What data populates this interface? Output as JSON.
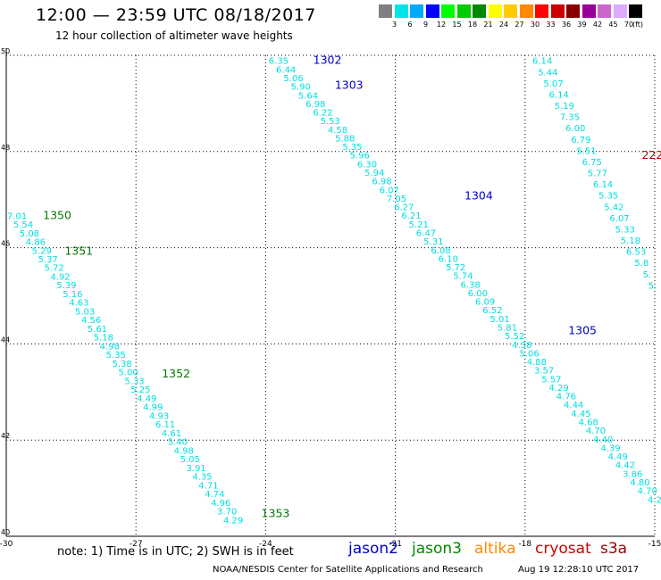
{
  "header": {
    "title": "12:00 — 23:59 UTC 08/18/2017",
    "subtitle": "12 hour collection of altimeter wave heights"
  },
  "colorbar": {
    "colors": [
      "#808080",
      "#00e5e5",
      "#00aaff",
      "#0000ff",
      "#00ff00",
      "#00cc00",
      "#008800",
      "#ffff00",
      "#ffcc00",
      "#ff8800",
      "#ff0000",
      "#cc0000",
      "#880000",
      "#990099",
      "#cc66cc",
      "#ddaaff",
      "#000000"
    ],
    "labels": [
      "3",
      "6",
      "9",
      "12",
      "15",
      "18",
      "21",
      "24",
      "27",
      "30",
      "33",
      "36",
      "39",
      "42",
      "45",
      "70"
    ],
    "unit": "(ft)"
  },
  "map": {
    "x_ticks": [
      "-30",
      "-27",
      "-24",
      "-21",
      "-18",
      "-15"
    ],
    "y_ticks": [
      "50",
      "48",
      "46",
      "44",
      "42",
      "40"
    ],
    "grid": true
  },
  "tracks": [
    {
      "id": "jason3-track-1350-1353",
      "color": "#00dede",
      "start": [
        -29.75,
        46.6
      ],
      "end": [
        -24.75,
        40.27
      ],
      "values": [
        "7.01",
        "5.54",
        "5.08",
        "4.86",
        "5.29",
        "5.37",
        "5.72",
        "4.92",
        "5.39",
        "5.16",
        "4.63",
        "5.03",
        "4.56",
        "5.61",
        "5.18",
        "4.98",
        "5.35",
        "5.38",
        "5.00",
        "5.33",
        "5.25",
        "4.49",
        "4.99",
        "4.93",
        "6.11",
        "4.61",
        "5.40",
        "4.98",
        "5.05",
        "3.91",
        "4.35",
        "4.71",
        "4.74",
        "4.96",
        "3.70",
        "4.29"
      ]
    },
    {
      "id": "jason2-track-1302-1305",
      "color": "#00dede",
      "start": [
        -23.7,
        49.82
      ],
      "end": [
        -15.0,
        40.7
      ],
      "values": [
        "6.35",
        "6.44",
        "5.06",
        "5.90",
        "5.64",
        "6.98",
        "6.22",
        "5.53",
        "4.58",
        "5.88",
        "5.35",
        "5.96",
        "6.30",
        "5.94",
        "6.98",
        "6.07",
        "7.05",
        "6.27",
        "6.21",
        "5.21",
        "6.47",
        "5.31",
        "6.08",
        "6.10",
        "5.72",
        "5.74",
        "6.38",
        "6.00",
        "6.09",
        "6.52",
        "5.01",
        "5.81",
        "5.52",
        "4.38",
        "5.06",
        "4.88",
        "3.57",
        "5.57",
        "4.29",
        "4.76",
        "4.44",
        "4.45",
        "4.68",
        "4.70",
        "4.40",
        "4.39",
        "4.49",
        "4.42",
        "3.86",
        "4.80",
        "4.70",
        "4.2"
      ]
    },
    {
      "id": "track-right-edge",
      "color": "#00dede",
      "start": [
        -17.6,
        49.82
      ],
      "end": [
        -15.05,
        45.15
      ],
      "values": [
        "6.14",
        "5.44",
        "5.07",
        "6.14",
        "5.19",
        "7.35",
        "6.00",
        "6.79",
        "5.51",
        "6.75",
        "5.77",
        "6.14",
        "5.35",
        "5.42",
        "6.07",
        "5.33",
        "5.18",
        "6.53",
        "5.8",
        "5.",
        "5."
      ]
    }
  ],
  "track_labels": [
    {
      "text": "1302",
      "color": "#0000cc",
      "lon": -22.9,
      "lat": 49.82
    },
    {
      "text": "1303",
      "color": "#0000cc",
      "lon": -22.4,
      "lat": 49.3
    },
    {
      "text": "1304",
      "color": "#0000cc",
      "lon": -19.4,
      "lat": 47.0
    },
    {
      "text": "1305",
      "color": "#0000cc",
      "lon": -17.0,
      "lat": 44.2
    },
    {
      "text": "1350",
      "color": "#007700",
      "lon": -29.15,
      "lat": 46.6
    },
    {
      "text": "1351",
      "color": "#007700",
      "lon": -28.65,
      "lat": 45.85
    },
    {
      "text": "1352",
      "color": "#007700",
      "lon": -26.4,
      "lat": 43.3
    },
    {
      "text": "1353",
      "color": "#007700",
      "lon": -24.1,
      "lat": 40.4
    },
    {
      "text": "222",
      "color": "#aa0000",
      "lon": -15.3,
      "lat": 47.85
    }
  ],
  "footer": {
    "note": "note: 1) Time is in UTC; 2) SWH is in feet",
    "satellites": [
      {
        "name": "jason2",
        "color": "#0000cc"
      },
      {
        "name": "jason3",
        "color": "#008800"
      },
      {
        "name": "altika",
        "color": "#ff8800"
      },
      {
        "name": "cryosat",
        "color": "#cc0000"
      },
      {
        "name": "s3a",
        "color": "#990000"
      }
    ],
    "credit": "NOAA/NESDIS Center for Satellite Applications and Research",
    "timestamp": "Aug 19 12:28:10 UTC 2017"
  }
}
